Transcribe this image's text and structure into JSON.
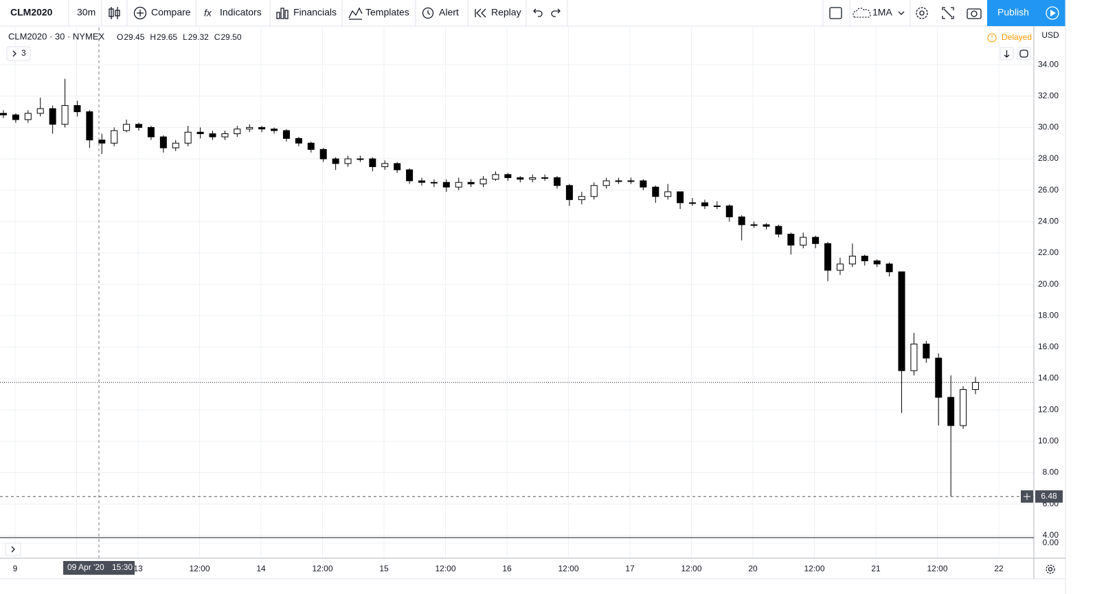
{
  "toolbar": {
    "symbol": "CLM2020",
    "interval": "30m",
    "compare": "Compare",
    "indicators": "Indicators",
    "financials": "Financials",
    "templates": "Templates",
    "alert": "Alert",
    "replay": "Replay",
    "layout": "1MA",
    "publish": "Publish"
  },
  "legend": {
    "title": "CLM2020 · 30 · NYMEX",
    "ohlc": [
      {
        "key": "O",
        "value": "29.45"
      },
      {
        "key": "H",
        "value": "29.65"
      },
      {
        "key": "L",
        "value": "29.32"
      },
      {
        "key": "C",
        "value": "29.50"
      }
    ],
    "studies": "3",
    "status": "Delayed",
    "currency": "USD"
  },
  "chart_data": {
    "type": "candlestick",
    "up_color": "#ffffff",
    "down_color": "#000000",
    "wick_color": "#000000",
    "open": [
      30.9,
      30.8,
      30.5,
      30.9,
      31.2,
      30.2,
      31.4,
      31.0,
      29.2,
      29.0,
      29.8,
      30.2,
      30.0,
      29.4,
      28.7,
      29.0,
      29.7,
      29.6,
      29.4,
      29.6,
      29.9,
      30.0,
      29.9,
      29.8,
      29.3,
      29.0,
      28.6,
      28.0,
      27.7,
      28.0,
      28.0,
      27.5,
      27.7,
      27.3,
      26.6,
      26.5,
      26.5,
      26.2,
      26.5,
      26.4,
      26.7,
      27.0,
      26.8,
      26.7,
      26.8,
      26.8,
      26.3,
      25.4,
      25.6,
      26.3,
      26.6,
      26.6,
      26.6,
      26.2,
      25.6,
      25.9,
      25.2,
      25.2,
      25.0,
      25.0,
      24.3,
      23.8,
      23.8,
      23.7,
      23.2,
      22.5,
      23.0,
      22.6,
      20.9,
      21.3,
      21.8,
      21.5,
      21.3,
      20.8,
      14.5,
      16.2,
      15.3,
      12.8,
      11.0,
      13.3
    ],
    "high": [
      31.1,
      30.9,
      31.1,
      31.9,
      31.4,
      33.1,
      31.7,
      31.1,
      29.6,
      30.0,
      30.5,
      30.3,
      30.1,
      29.5,
      29.2,
      30.1,
      30.0,
      29.8,
      29.8,
      30.1,
      30.2,
      30.1,
      30.0,
      29.9,
      29.4,
      29.1,
      28.7,
      28.1,
      28.2,
      28.2,
      28.1,
      27.9,
      27.8,
      27.4,
      26.8,
      26.7,
      26.7,
      26.8,
      26.7,
      26.9,
      27.2,
      27.1,
      26.9,
      27.0,
      27.0,
      26.9,
      26.4,
      25.9,
      26.5,
      26.8,
      26.8,
      26.8,
      26.7,
      26.3,
      26.4,
      25.9,
      25.5,
      25.4,
      25.3,
      25.1,
      24.4,
      24.0,
      23.9,
      23.8,
      23.3,
      23.3,
      23.1,
      22.7,
      21.7,
      22.6,
      21.9,
      21.6,
      21.4,
      20.8,
      16.9,
      16.4,
      15.6,
      14.2,
      13.5,
      14.1
    ],
    "low": [
      30.6,
      30.3,
      30.3,
      30.7,
      29.6,
      30.0,
      30.7,
      28.7,
      28.3,
      28.8,
      29.7,
      29.8,
      29.2,
      28.4,
      28.5,
      28.8,
      29.3,
      29.2,
      29.2,
      29.4,
      29.7,
      29.7,
      29.6,
      29.1,
      28.8,
      28.4,
      27.8,
      27.3,
      27.5,
      27.8,
      27.2,
      27.3,
      27.1,
      26.4,
      26.3,
      26.2,
      25.9,
      26.0,
      26.2,
      26.2,
      26.6,
      26.6,
      26.5,
      26.5,
      26.6,
      26.1,
      25.0,
      25.1,
      25.4,
      26.1,
      26.4,
      26.4,
      26.0,
      25.2,
      25.4,
      24.8,
      25.0,
      24.8,
      24.8,
      24.0,
      22.8,
      23.6,
      23.5,
      23.0,
      21.9,
      22.3,
      22.3,
      20.2,
      20.6,
      21.1,
      21.2,
      21.1,
      20.5,
      11.8,
      14.2,
      15.0,
      11.0,
      6.48,
      10.8,
      13.0
    ],
    "close": [
      30.8,
      30.5,
      30.9,
      31.2,
      30.2,
      31.4,
      31.0,
      29.2,
      29.0,
      29.8,
      30.2,
      30.0,
      29.4,
      28.7,
      29.0,
      29.7,
      29.6,
      29.4,
      29.6,
      29.9,
      30.0,
      29.9,
      29.8,
      29.3,
      29.0,
      28.6,
      28.0,
      27.7,
      28.0,
      28.0,
      27.5,
      27.7,
      27.3,
      26.6,
      26.5,
      26.5,
      26.2,
      26.5,
      26.4,
      26.7,
      27.0,
      26.8,
      26.7,
      26.8,
      26.8,
      26.3,
      25.4,
      25.6,
      26.3,
      26.6,
      26.6,
      26.6,
      26.2,
      25.6,
      25.9,
      25.2,
      25.2,
      25.0,
      25.0,
      24.3,
      23.8,
      23.8,
      23.7,
      23.2,
      22.5,
      23.0,
      22.6,
      20.9,
      21.3,
      21.8,
      21.5,
      21.3,
      20.8,
      14.5,
      16.2,
      15.3,
      12.8,
      11.0,
      13.3,
      13.75
    ],
    "ylim": [
      3.86,
      36.37
    ],
    "yticks": [
      {
        "value": 34,
        "label": "34.00"
      },
      {
        "value": 32,
        "label": "32.00"
      },
      {
        "value": 30,
        "label": "30.00"
      },
      {
        "value": 28,
        "label": "28.00"
      },
      {
        "value": 26,
        "label": "26.00"
      },
      {
        "value": 24,
        "label": "24.00"
      },
      {
        "value": 22,
        "label": "22.00"
      },
      {
        "value": 20,
        "label": "20.00"
      },
      {
        "value": 18,
        "label": "18.00"
      },
      {
        "value": 16,
        "label": "16.00"
      },
      {
        "value": 14,
        "label": "14.00"
      },
      {
        "value": 12,
        "label": "12.00"
      },
      {
        "value": 10,
        "label": "10.00"
      },
      {
        "value": 8,
        "label": "8.00"
      },
      {
        "value": 6,
        "label": "6.00"
      },
      {
        "value": 4,
        "label": "4.00"
      }
    ],
    "categories": [
      "9",
      null,
      "13",
      "12:00",
      "14",
      "12:00",
      "15",
      "12:00",
      "16",
      "12:00",
      "17",
      "12:00",
      "20",
      "12:00",
      "21",
      "12:00",
      "22"
    ],
    "grid": true,
    "crosshair": {
      "price": {
        "value": 6.48,
        "label": "6.48"
      },
      "date_label": "09 Apr '20",
      "time_label": "15:30"
    },
    "indicator": {
      "yticks": [
        {
          "value": 0,
          "label": "0.00"
        }
      ]
    }
  }
}
